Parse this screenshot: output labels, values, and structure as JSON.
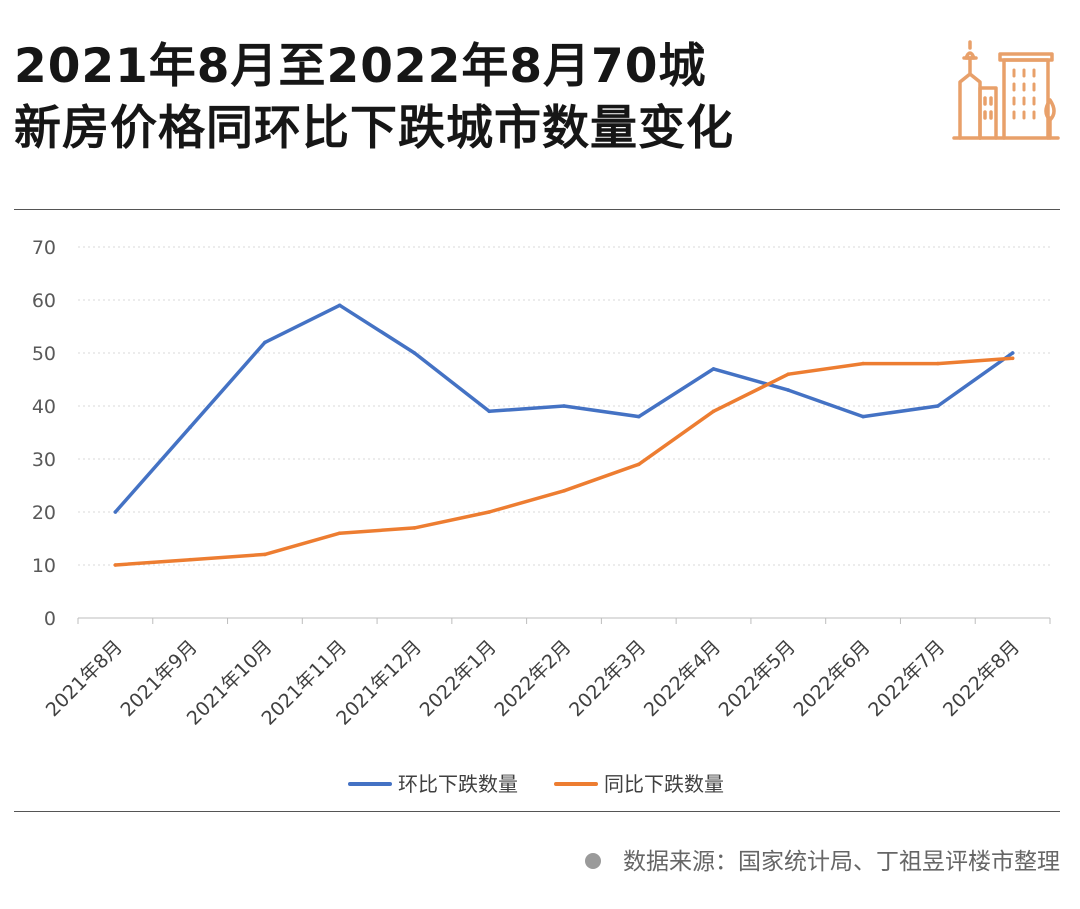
{
  "header": {
    "title_line1": "2021年8月至2022年8月70城",
    "title_line2": "新房价格同环比下跌城市数量变化",
    "logo_icon": "city-buildings-icon",
    "accent_color": "#E8A06A"
  },
  "chart_data": {
    "type": "line",
    "title": "2021年8月至2022年8月70城新房价格同环比下跌城市数量变化",
    "xlabel": "",
    "ylabel": "",
    "categories": [
      "2021年8月",
      "2021年9月",
      "2021年10月",
      "2021年11月",
      "2021年12月",
      "2022年1月",
      "2022年2月",
      "2022年3月",
      "2022年4月",
      "2022年5月",
      "2022年6月",
      "2022年7月",
      "2022年8月"
    ],
    "ylim": [
      0,
      70
    ],
    "yticks": [
      0,
      10,
      20,
      30,
      40,
      50,
      60,
      70
    ],
    "grid": "horizontal dotted",
    "legend_position": "bottom",
    "series": [
      {
        "name": "环比下跌数量",
        "color": "#4472C4",
        "values": [
          20,
          36,
          52,
          59,
          50,
          39,
          40,
          38,
          47,
          43,
          38,
          40,
          50
        ]
      },
      {
        "name": "同比下跌数量",
        "color": "#ED7D31",
        "values": [
          10,
          11,
          12,
          16,
          17,
          20,
          24,
          29,
          39,
          46,
          48,
          48,
          49
        ]
      }
    ]
  },
  "footer": {
    "source_text": "数据来源：国家统计局、丁祖昱评楼市整理"
  }
}
